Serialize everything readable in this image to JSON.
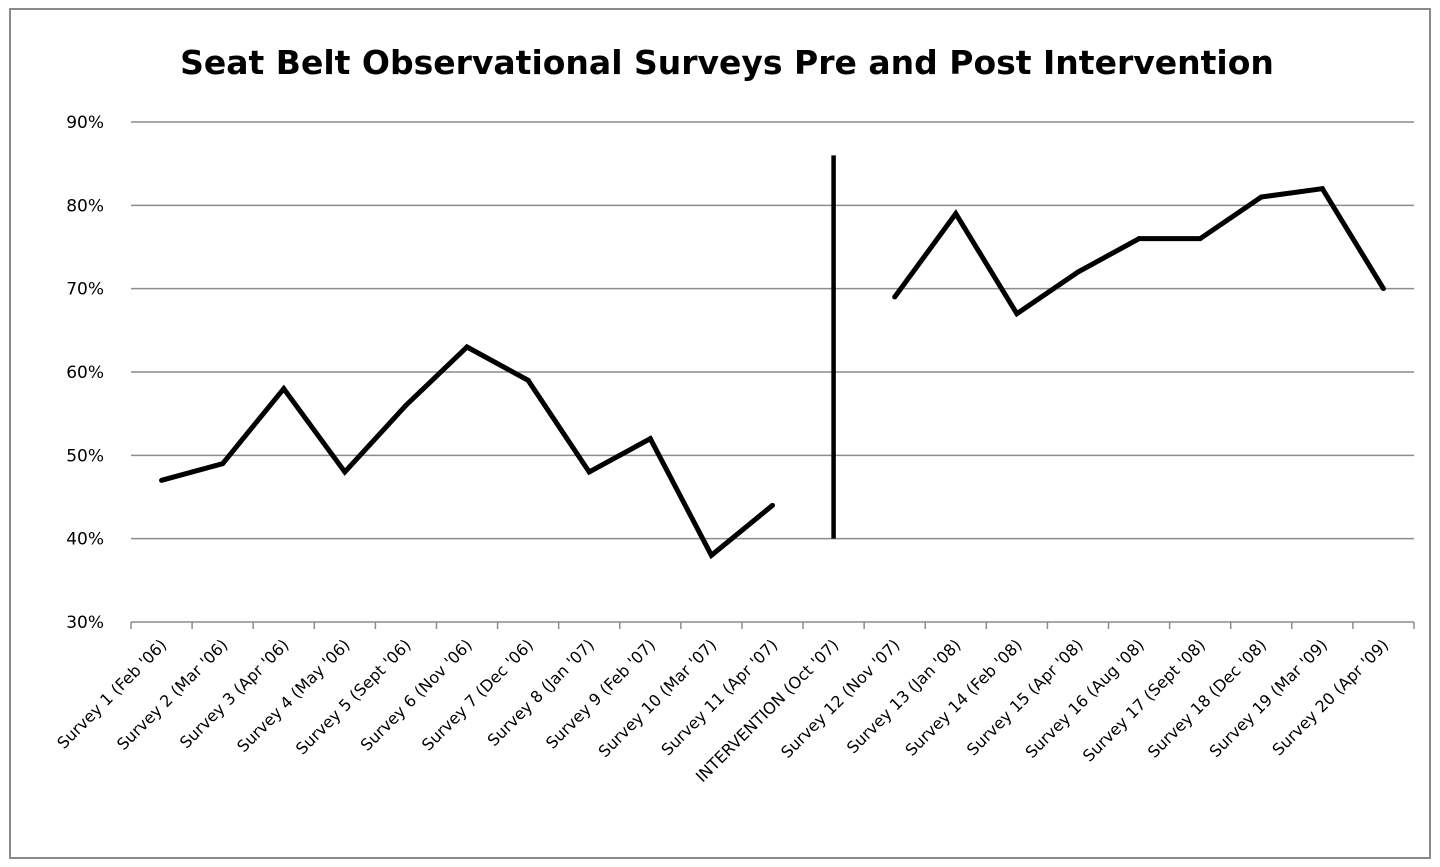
{
  "chart_data": {
    "type": "line",
    "title": "Seat Belt Observational Surveys Pre and Post Intervention",
    "xlabel": "",
    "ylabel": "",
    "ylim": [
      0.3,
      0.9
    ],
    "y_ticks": [
      "30%",
      "40%",
      "50%",
      "60%",
      "70%",
      "80%",
      "90%"
    ],
    "grid": "horizontal",
    "legend": "none",
    "line_color": "#000000",
    "grid_color": "#8c8c8c",
    "categories": [
      "Survey 1 (Feb '06)",
      "Survey 2 (Mar '06)",
      "Survey 3 (Apr '06)",
      "Survey 4 (May '06)",
      "Survey 5 (Sept '06)",
      "Survey 6 (Nov '06)",
      "Survey 7 (Dec '06)",
      "Survey 8 (Jan '07)",
      "Survey 9 (Feb '07)",
      "Survey 10 (Mar '07)",
      "Survey 11 (Apr '07)",
      "INTERVENTION (Oct '07)",
      "Survey 12 (Nov '07)",
      "Survey 13 (Jan '08)",
      "Survey 14 (Feb '08)",
      "Survey 15 (Apr '08)",
      "Survey 16 (Aug '08)",
      "Survey 17 (Sept '08)",
      "Survey 18 (Dec '08)",
      "Survey 19 (Mar '09)",
      "Survey 20 (Apr '09)"
    ],
    "series": [
      {
        "values": [
          0.47,
          0.49,
          0.58,
          0.48,
          0.56,
          0.63,
          0.59,
          0.48,
          0.52,
          0.38,
          0.44,
          null,
          0.69,
          0.79,
          0.67,
          0.72,
          0.76,
          0.76,
          0.81,
          0.82,
          0.7
        ]
      }
    ],
    "intervention_marker": {
      "category": "INTERVENTION (Oct '07)",
      "y_range": [
        0.4,
        0.86
      ]
    }
  }
}
